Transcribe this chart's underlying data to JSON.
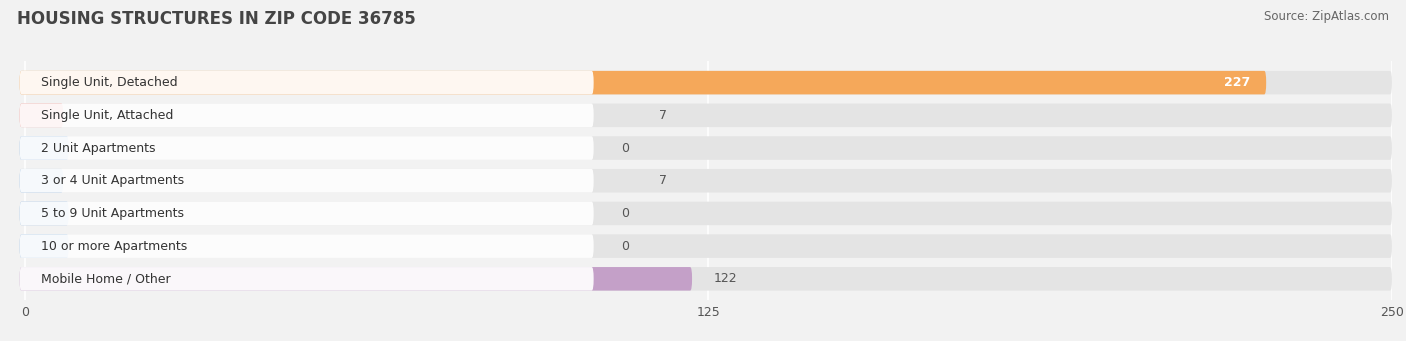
{
  "title": "HOUSING STRUCTURES IN ZIP CODE 36785",
  "source": "Source: ZipAtlas.com",
  "categories": [
    "Single Unit, Detached",
    "Single Unit, Attached",
    "2 Unit Apartments",
    "3 or 4 Unit Apartments",
    "5 to 9 Unit Apartments",
    "10 or more Apartments",
    "Mobile Home / Other"
  ],
  "values": [
    227,
    7,
    0,
    7,
    0,
    0,
    122
  ],
  "colors": [
    "#F5A85A",
    "#F0908A",
    "#92B8E0",
    "#92B8E0",
    "#92B8E0",
    "#92B8E0",
    "#C4A0C8"
  ],
  "xlim_max": 250,
  "xticks": [
    0,
    125,
    250
  ],
  "background_color": "#f2f2f2",
  "bar_bg_color": "#e4e4e4",
  "white_pill_color": "#ffffff",
  "label_fontsize": 9,
  "value_fontsize": 9,
  "title_fontsize": 12,
  "source_fontsize": 8.5,
  "value_color_inside": "#ffffff",
  "value_color_outside": "#555555"
}
